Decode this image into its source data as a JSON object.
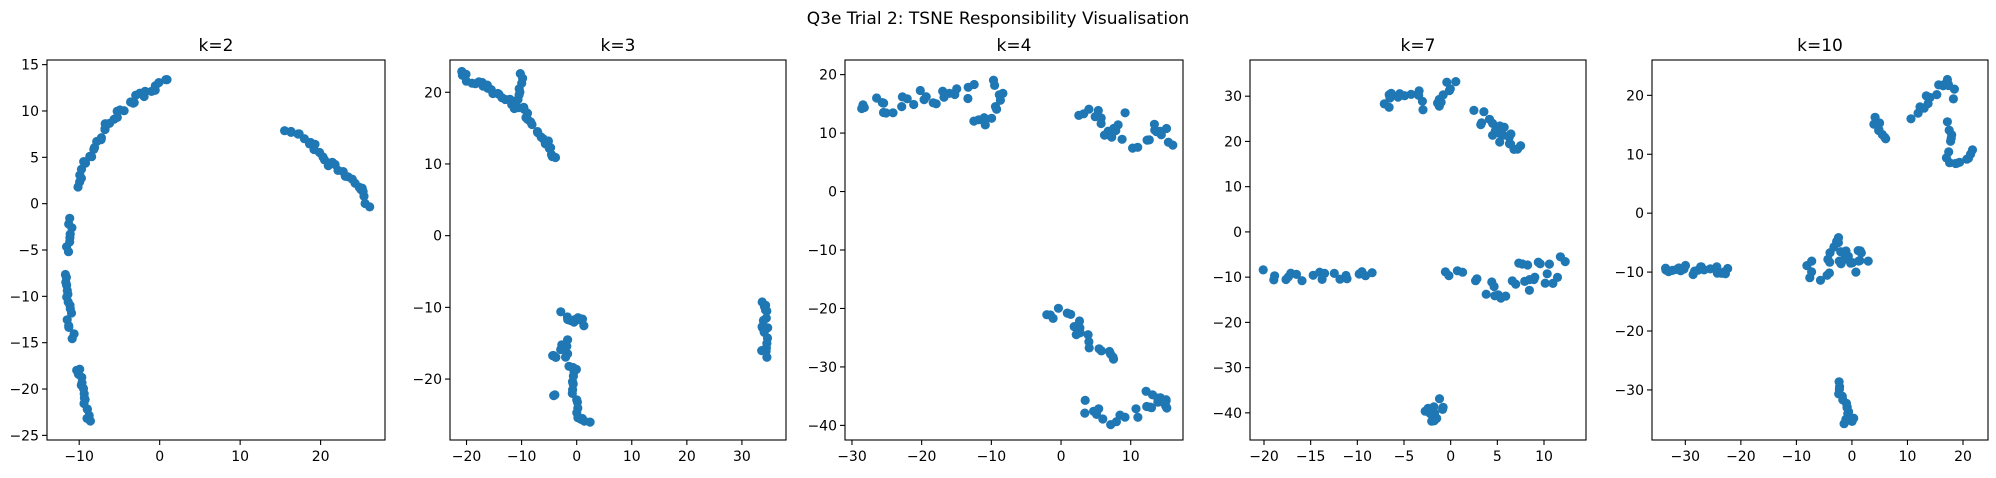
{
  "suptitle": "Q3e Trial 2: TSNE Responsibility Visualisation",
  "chart_data": [
    {
      "type": "scatter",
      "title": "k=2",
      "xlim": [
        -14,
        28
      ],
      "ylim": [
        -25.5,
        15.5
      ],
      "xticks": [
        -10,
        0,
        10,
        20
      ],
      "yticks": [
        -25,
        -20,
        -15,
        -10,
        -5,
        0,
        5,
        10,
        15
      ],
      "color": "#1f77b4",
      "clusters": [
        {
          "path": [
            [
              -10.3,
              2.0
            ],
            [
              -9.8,
              3.2
            ],
            [
              -9.2,
              4.5
            ],
            [
              -8.5,
              5.5
            ],
            [
              -7.5,
              7.0
            ],
            [
              -6.5,
              8.5
            ],
            [
              -5.5,
              9.3
            ],
            [
              -4.0,
              10.6
            ],
            [
              -2.5,
              11.5
            ],
            [
              -1.0,
              12.3
            ],
            [
              0.5,
              13.0
            ],
            [
              1.0,
              13.4
            ]
          ],
          "n": 36,
          "spread": 0.35
        },
        {
          "path": [
            [
              15.8,
              8.0
            ],
            [
              17.5,
              7.2
            ],
            [
              19.5,
              6.0
            ],
            [
              21.0,
              4.5
            ],
            [
              22.5,
              3.5
            ],
            [
              23.5,
              2.8
            ],
            [
              24.5,
              2.0
            ],
            [
              25.5,
              1.0
            ],
            [
              26.0,
              -0.3
            ]
          ],
          "n": 30,
          "spread": 0.35
        },
        {
          "path": [
            [
              -11.0,
              -1.8
            ],
            [
              -11.3,
              -3.5
            ],
            [
              -11.5,
              -5.0
            ]
          ],
          "n": 8,
          "spread": 0.25
        },
        {
          "path": [
            [
              -11.8,
              -7.5
            ],
            [
              -11.6,
              -9.5
            ],
            [
              -11.4,
              -11.0
            ],
            [
              -11.2,
              -12.5
            ],
            [
              -10.8,
              -14.3
            ]
          ],
          "n": 16,
          "spread": 0.3
        },
        {
          "path": [
            [
              -10.2,
              -17.8
            ],
            [
              -9.8,
              -19.5
            ],
            [
              -9.4,
              -21.0
            ],
            [
              -9.0,
              -22.5
            ],
            [
              -8.7,
              -23.5
            ]
          ],
          "n": 16,
          "spread": 0.3
        }
      ]
    },
    {
      "type": "scatter",
      "title": "k=3",
      "xlim": [
        -23,
        38
      ],
      "ylim": [
        -28.5,
        24.5
      ],
      "xticks": [
        -20,
        -10,
        0,
        10,
        20,
        30
      ],
      "yticks": [
        -20,
        -10,
        0,
        10,
        20
      ],
      "color": "#1f77b4",
      "clusters": [
        {
          "path": [
            [
              -21.0,
              22.8
            ],
            [
              -19.0,
              21.6
            ],
            [
              -17.0,
              20.8
            ],
            [
              -15.0,
              20.0
            ],
            [
              -13.0,
              19.0
            ],
            [
              -11.0,
              18.0
            ],
            [
              -9.5,
              17.2
            ],
            [
              -8.5,
              16.0
            ],
            [
              -7.0,
              14.5
            ],
            [
              -5.5,
              13.0
            ],
            [
              -4.5,
              11.5
            ],
            [
              -3.8,
              10.5
            ]
          ],
          "n": 40,
          "spread": 0.5
        },
        {
          "path": [
            [
              -10.0,
              22.5
            ],
            [
              -10.5,
              20.0
            ],
            [
              -11.0,
              18.5
            ]
          ],
          "n": 8,
          "spread": 0.4
        },
        {
          "path": [
            [
              -2.5,
              -11.0
            ],
            [
              -1.0,
              -12.0
            ],
            [
              0.5,
              -11.2
            ],
            [
              1.0,
              -12.5
            ]
          ],
          "n": 12,
          "spread": 0.5
        },
        {
          "path": [
            [
              -2.0,
              -14.5
            ],
            [
              -2.5,
              -16.5
            ],
            [
              -1.5,
              -18.0
            ],
            [
              0.0,
              -19.0
            ],
            [
              -0.5,
              -21.5
            ],
            [
              0.0,
              -24.0
            ],
            [
              0.5,
              -26.0
            ],
            [
              2.0,
              -26.5
            ]
          ],
          "n": 24,
          "spread": 0.6
        },
        {
          "path": [
            [
              -4.5,
              -16.5
            ],
            [
              -3.5,
              -17.0
            ]
          ],
          "n": 4,
          "spread": 0.4
        },
        {
          "path": [
            [
              -4.0,
              -22.2
            ]
          ],
          "n": 2,
          "spread": 0.2
        },
        {
          "path": [
            [
              33.5,
              -9.5
            ],
            [
              34.5,
              -11.0
            ],
            [
              34.0,
              -13.0
            ],
            [
              34.5,
              -15.0
            ],
            [
              34.0,
              -16.5
            ]
          ],
          "n": 18,
          "spread": 0.6
        }
      ]
    },
    {
      "type": "scatter",
      "title": "k=4",
      "xlim": [
        -31,
        17.5
      ],
      "ylim": [
        -42.5,
        22.5
      ],
      "xticks": [
        -30,
        -20,
        -10,
        0,
        10
      ],
      "yticks": [
        -40,
        -30,
        -20,
        -10,
        0,
        10,
        20
      ],
      "color": "#1f77b4",
      "clusters": [
        {
          "path": [
            [
              -29.0,
              14.0
            ],
            [
              -27.0,
              15.0
            ],
            [
              -25.0,
              14.5
            ],
            [
              -23.0,
              15.0
            ],
            [
              -21.0,
              16.0
            ],
            [
              -19.0,
              15.5
            ],
            [
              -17.0,
              16.0
            ],
            [
              -15.0,
              16.5
            ],
            [
              -13.0,
              17.0
            ]
          ],
          "n": 26,
          "spread": 1.0
        },
        {
          "path": [
            [
              -12.5,
              12.0
            ],
            [
              -11.0,
              11.0
            ],
            [
              -10.0,
              13.0
            ]
          ],
          "n": 6,
          "spread": 0.8
        },
        {
          "path": [
            [
              -9.0,
              19.5
            ],
            [
              -8.5,
              16.5
            ],
            [
              -9.0,
              14.0
            ]
          ],
          "n": 7,
          "spread": 0.7
        },
        {
          "path": [
            [
              3.0,
              13.5
            ],
            [
              5.0,
              14.0
            ],
            [
              6.0,
              11.0
            ],
            [
              7.0,
              8.5
            ],
            [
              8.5,
              12.5
            ],
            [
              8.0,
              10.0
            ]
          ],
          "n": 18,
          "spread": 0.8
        },
        {
          "path": [
            [
              11.0,
              7.5
            ],
            [
              13.0,
              9.5
            ],
            [
              14.5,
              11.0
            ],
            [
              15.5,
              8.5
            ]
          ],
          "n": 12,
          "spread": 0.8
        },
        {
          "path": [
            [
              -2.0,
              -21.5
            ],
            [
              0.0,
              -21.0
            ],
            [
              1.5,
              -22.0
            ],
            [
              3.0,
              -24.0
            ],
            [
              4.5,
              -25.5
            ],
            [
              6.0,
              -27.0
            ],
            [
              8.0,
              -28.0
            ]
          ],
          "n": 20,
          "spread": 0.8
        },
        {
          "path": [
            [
              3.0,
              -36.5
            ],
            [
              5.0,
              -38.0
            ],
            [
              7.0,
              -39.0
            ],
            [
              9.0,
              -38.5
            ],
            [
              11.0,
              -37.5
            ],
            [
              13.0,
              -36.5
            ],
            [
              14.5,
              -35.0
            ],
            [
              15.5,
              -37.0
            ],
            [
              12.5,
              -33.5
            ]
          ],
          "n": 26,
          "spread": 0.8
        }
      ]
    },
    {
      "type": "scatter",
      "title": "k=7",
      "xlim": [
        -21.5,
        14.5
      ],
      "ylim": [
        -46,
        38
      ],
      "xticks": [
        -20,
        -15,
        -10,
        -5,
        0,
        5,
        10
      ],
      "yticks": [
        -40,
        -30,
        -20,
        -10,
        0,
        10,
        20,
        30
      ],
      "color": "#1f77b4",
      "clusters": [
        {
          "path": [
            [
              -7.5,
              28.0
            ],
            [
              -6.0,
              31.0
            ],
            [
              -4.0,
              30.5
            ],
            [
              -3.0,
              28.5
            ],
            [
              -1.5,
              28.0
            ],
            [
              -0.5,
              31.0
            ],
            [
              0.0,
              33.0
            ]
          ],
          "n": 22,
          "spread": 0.6
        },
        {
          "path": [
            [
              3.0,
              26.0
            ],
            [
              4.5,
              24.5
            ],
            [
              5.5,
              22.0
            ],
            [
              6.5,
              19.5
            ],
            [
              7.5,
              19.0
            ],
            [
              5.0,
              20.5
            ],
            [
              3.5,
              23.5
            ]
          ],
          "n": 20,
          "spread": 0.6
        },
        {
          "path": [
            [
              -20.0,
              -9.5
            ],
            [
              -18.0,
              -9.5
            ],
            [
              -16.0,
              -10.0
            ],
            [
              -14.0,
              -9.5
            ],
            [
              -12.5,
              -10.0
            ],
            [
              -11.0,
              -10.2
            ],
            [
              -8.5,
              -9.2
            ]
          ],
          "n": 20,
          "spread": 0.5
        },
        {
          "path": [
            [
              -0.5,
              -8.8
            ],
            [
              1.0,
              -9.5
            ]
          ],
          "n": 4,
          "spread": 0.3
        },
        {
          "path": [
            [
              2.5,
              -11.5
            ],
            [
              4.0,
              -12.5
            ],
            [
              5.5,
              -13.5
            ],
            [
              7.0,
              -12.5
            ],
            [
              8.5,
              -11.0
            ],
            [
              10.0,
              -10.0
            ],
            [
              11.5,
              -9.5
            ]
          ],
          "n": 20,
          "spread": 0.7
        },
        {
          "path": [
            [
              7.0,
              -7.0
            ],
            [
              9.0,
              -6.5
            ],
            [
              12.0,
              -6.5
            ]
          ],
          "n": 8,
          "spread": 0.5
        },
        {
          "path": [
            [
              -3.0,
              -40.0
            ],
            [
              -2.0,
              -41.5
            ],
            [
              -1.5,
              -38.5
            ],
            [
              -0.5,
              -37.5
            ]
          ],
          "n": 14,
          "spread": 0.6
        }
      ]
    },
    {
      "type": "scatter",
      "title": "k=10",
      "xlim": [
        -36,
        24.5
      ],
      "ylim": [
        -38.5,
        26
      ],
      "xticks": [
        -30,
        -20,
        -10,
        0,
        10,
        20
      ],
      "yticks": [
        -30,
        -20,
        -10,
        0,
        10,
        20
      ],
      "color": "#1f77b4",
      "clusters": [
        {
          "path": [
            [
              -34.0,
              -9.5
            ],
            [
              -32.0,
              -10.0
            ],
            [
              -30.0,
              -9.5
            ],
            [
              -28.0,
              -9.8
            ],
            [
              -26.0,
              -9.5
            ],
            [
              -24.0,
              -10.0
            ],
            [
              -22.0,
              -9.5
            ]
          ],
          "n": 22,
          "spread": 0.7
        },
        {
          "path": [
            [
              -7.5,
              -8.5
            ],
            [
              -7.0,
              -11.5
            ],
            [
              -5.0,
              -10.5
            ],
            [
              -4.0,
              -7.0
            ],
            [
              -3.0,
              -4.0
            ],
            [
              -2.0,
              -9.0
            ],
            [
              -1.0,
              -6.5
            ],
            [
              0.5,
              -10.0
            ],
            [
              1.0,
              -6.0
            ],
            [
              2.5,
              -8.0
            ]
          ],
          "n": 30,
          "spread": 0.8
        },
        {
          "path": [
            [
              -2.5,
              -29.0
            ],
            [
              -1.5,
              -31.5
            ],
            [
              -0.5,
              -33.0
            ],
            [
              0.0,
              -35.0
            ],
            [
              -1.0,
              -36.0
            ]
          ],
          "n": 16,
          "spread": 0.6
        },
        {
          "path": [
            [
              4.0,
              16.0
            ],
            [
              5.0,
              14.0
            ],
            [
              6.0,
              12.5
            ]
          ],
          "n": 8,
          "spread": 0.5
        },
        {
          "path": [
            [
              11.0,
              16.5
            ],
            [
              13.0,
              18.0
            ],
            [
              15.0,
              21.0
            ],
            [
              17.0,
              23.0
            ],
            [
              18.5,
              20.0
            ]
          ],
          "n": 16,
          "spread": 0.6
        },
        {
          "path": [
            [
              17.5,
              15.0
            ],
            [
              18.0,
              12.0
            ]
          ],
          "n": 5,
          "spread": 0.5
        },
        {
          "path": [
            [
              17.0,
              10.0
            ],
            [
              18.5,
              8.5
            ],
            [
              20.5,
              9.5
            ],
            [
              22.0,
              10.5
            ]
          ],
          "n": 10,
          "spread": 0.5
        }
      ]
    }
  ]
}
